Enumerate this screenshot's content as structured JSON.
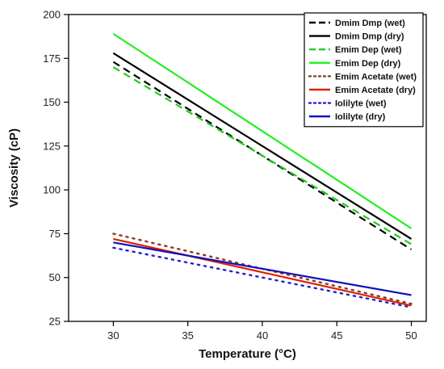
{
  "chart_data": {
    "type": "line",
    "title": "",
    "xlabel": "Temperature (°C)",
    "ylabel": "Viscosity (cP)",
    "xlim": [
      27,
      51
    ],
    "ylim": [
      25,
      200
    ],
    "xticks": [
      30,
      35,
      40,
      45,
      50
    ],
    "yticks": [
      25,
      50,
      75,
      100,
      125,
      150,
      175,
      200
    ],
    "legend_position": "top-right",
    "grid": false,
    "series": [
      {
        "name": "Dmim Dmp (wet)",
        "color": "#000000",
        "style": "dashed",
        "x": [
          30,
          50
        ],
        "y": [
          173,
          66
        ]
      },
      {
        "name": "Dmim Dmp (dry)",
        "color": "#000000",
        "style": "solid",
        "x": [
          30,
          50
        ],
        "y": [
          178,
          72
        ]
      },
      {
        "name": "Emim Dep (wet)",
        "color": "#22cc22",
        "style": "dashed",
        "x": [
          30,
          50
        ],
        "y": [
          170,
          69
        ]
      },
      {
        "name": "Emim Dep (dry)",
        "color": "#22ee22",
        "style": "solid",
        "x": [
          30,
          50
        ],
        "y": [
          189,
          78
        ]
      },
      {
        "name": "Emim Acetate (wet)",
        "color": "#8b3a2a",
        "style": "dotted",
        "x": [
          30,
          50
        ],
        "y": [
          75,
          35
        ]
      },
      {
        "name": "Emim Acetate (dry)",
        "color": "#dd2200",
        "style": "solid",
        "x": [
          30,
          50
        ],
        "y": [
          72,
          34
        ]
      },
      {
        "name": "Iolilyte (wet)",
        "color": "#2222cc",
        "style": "dotted",
        "x": [
          30,
          50
        ],
        "y": [
          67,
          33
        ]
      },
      {
        "name": "Iolilyte (dry)",
        "color": "#1111bb",
        "style": "solid",
        "x": [
          30,
          50
        ],
        "y": [
          70,
          40
        ]
      }
    ]
  }
}
